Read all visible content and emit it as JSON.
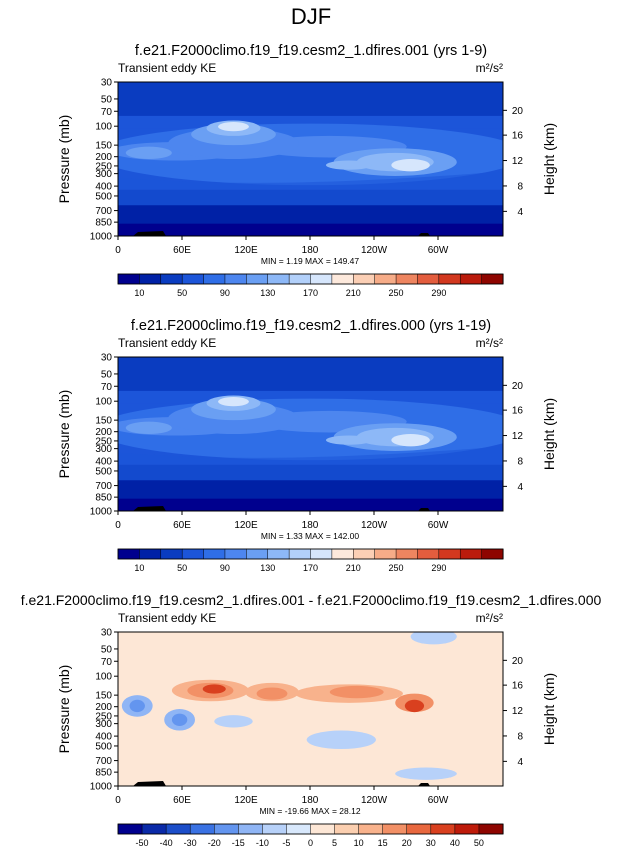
{
  "season": "DJF",
  "chart_data": [
    {
      "type": "heatmap",
      "title": "f.e21.F2000climo.f19_f19.cesm2_1.dfires.001 (yrs 1-9)",
      "left_label": "Transient eddy KE",
      "units": "m²/s²",
      "xticklabels": [
        "0",
        "60E",
        "120E",
        "180",
        "120W",
        "60W"
      ],
      "ylabel": "Pressure (mb)",
      "yticklabels": [
        "30",
        "50",
        "70",
        "100",
        "150",
        "200",
        "250",
        "300",
        "400",
        "500",
        "700",
        "850",
        "1000"
      ],
      "ylabel_right": "Height (km)",
      "yticklabels_right": [
        "20",
        "16",
        "12",
        "8",
        "4"
      ],
      "stats": "MIN =    1.19  MAX = 149.47",
      "min": 1.19,
      "max": 149.47,
      "colorbar": {
        "labels": [
          "10",
          "50",
          "90",
          "130",
          "170",
          "210",
          "250",
          "290"
        ],
        "colors": [
          "#00008e",
          "#0021a6",
          "#0a3cc0",
          "#1c55d9",
          "#2f6ee7",
          "#4d86ef",
          "#6a9ff3",
          "#8db8f7",
          "#b2d0fa",
          "#d6e6fc",
          "#fde9dc",
          "#fbcfb5",
          "#f6ac88",
          "#ee8560",
          "#e35d3e",
          "#d2381f",
          "#ba1b0c",
          "#8e0500"
        ]
      }
    },
    {
      "type": "heatmap",
      "title": "f.e21.F2000climo.f19_f19.cesm2_1.dfires.000 (yrs 1-19)",
      "left_label": "Transient eddy KE",
      "units": "m²/s²",
      "xticklabels": [
        "0",
        "60E",
        "120E",
        "180",
        "120W",
        "60W"
      ],
      "ylabel": "Pressure (mb)",
      "yticklabels": [
        "30",
        "50",
        "70",
        "100",
        "150",
        "200",
        "250",
        "300",
        "400",
        "500",
        "700",
        "850",
        "1000"
      ],
      "ylabel_right": "Height (km)",
      "yticklabels_right": [
        "20",
        "16",
        "12",
        "8",
        "4"
      ],
      "stats": "MIN =    1.33  MAX = 142.00",
      "min": 1.33,
      "max": 142.0,
      "colorbar": {
        "labels": [
          "10",
          "50",
          "90",
          "130",
          "170",
          "210",
          "250",
          "290"
        ],
        "colors": [
          "#00008e",
          "#0021a6",
          "#0a3cc0",
          "#1c55d9",
          "#2f6ee7",
          "#4d86ef",
          "#6a9ff3",
          "#8db8f7",
          "#b2d0fa",
          "#d6e6fc",
          "#fde9dc",
          "#fbcfb5",
          "#f6ac88",
          "#ee8560",
          "#e35d3e",
          "#d2381f",
          "#ba1b0c",
          "#8e0500"
        ]
      }
    },
    {
      "type": "heatmap",
      "title": "f.e21.F2000climo.f19_f19.cesm2_1.dfires.001 - f.e21.F2000climo.f19_f19.cesm2_1.dfires.000",
      "left_label": "Transient eddy KE",
      "units": "m²/s²",
      "xticklabels": [
        "0",
        "60E",
        "120E",
        "180",
        "120W",
        "60W"
      ],
      "ylabel": "Pressure (mb)",
      "yticklabels": [
        "30",
        "50",
        "70",
        "100",
        "150",
        "200",
        "250",
        "300",
        "400",
        "500",
        "700",
        "850",
        "1000"
      ],
      "ylabel_right": "Height (km)",
      "yticklabels_right": [
        "20",
        "16",
        "12",
        "8",
        "4"
      ],
      "stats": "MIN = -19.66  MAX =  28.12",
      "min": -19.66,
      "max": 28.12,
      "colorbar": {
        "labels": [
          "-50",
          "-40",
          "-30",
          "-20",
          "-15",
          "-10",
          "-5",
          "0",
          "5",
          "10",
          "15",
          "20",
          "30",
          "40",
          "50"
        ],
        "colors": [
          "#00008e",
          "#0a2aa8",
          "#1c4ec9",
          "#3a72e3",
          "#6395ef",
          "#8fb5f5",
          "#b7d1f9",
          "#d8e8fc",
          "#fde7d6",
          "#fbcfb0",
          "#f8b28c",
          "#f29066",
          "#e8683f",
          "#d9401f",
          "#be1b0a",
          "#8e0500"
        ]
      }
    }
  ]
}
